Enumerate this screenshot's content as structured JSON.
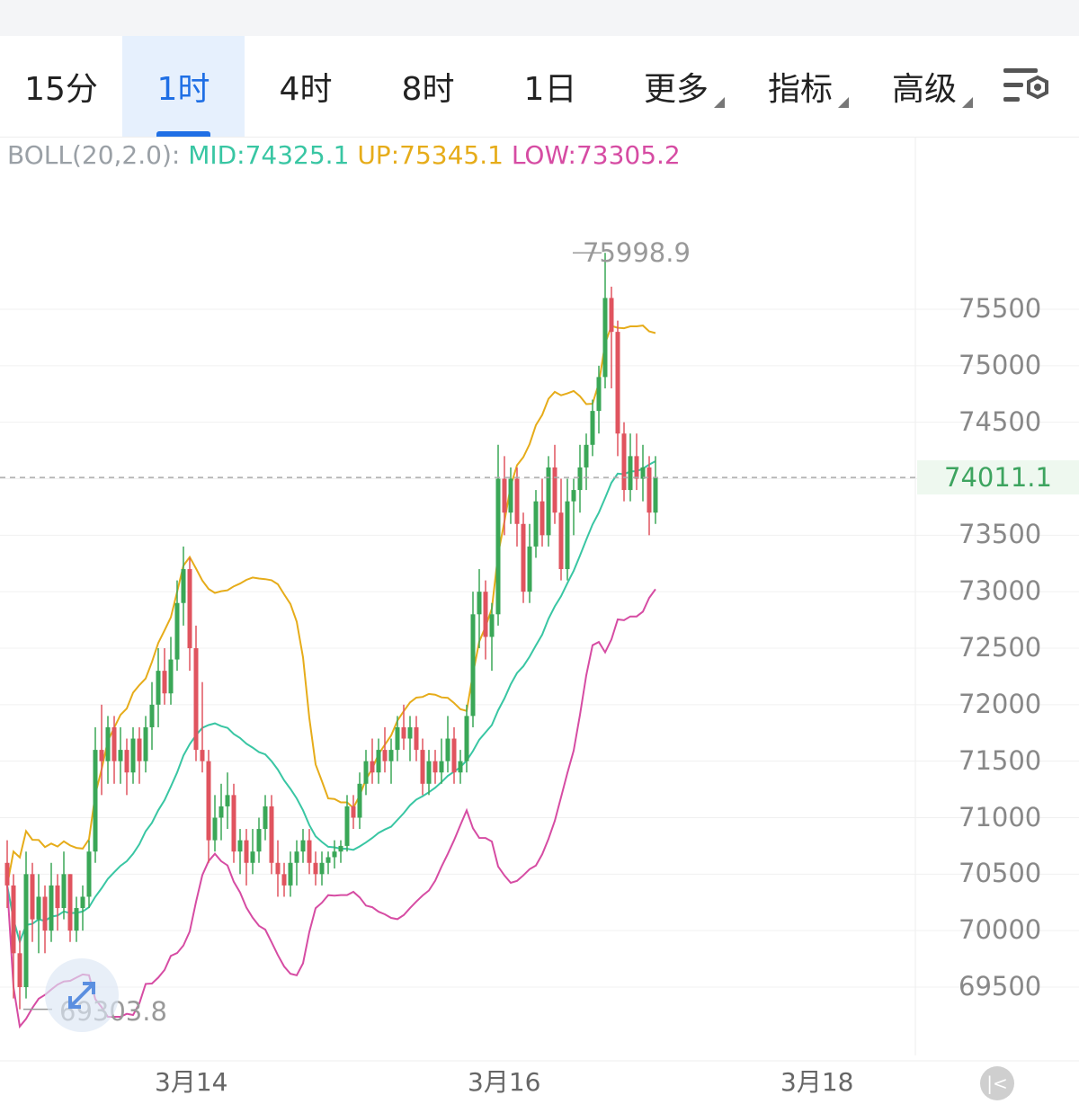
{
  "tabs": [
    {
      "label": "15分",
      "active": false,
      "dropdown": false
    },
    {
      "label": "1时",
      "active": true,
      "dropdown": false
    },
    {
      "label": "4时",
      "active": false,
      "dropdown": false
    },
    {
      "label": "8时",
      "active": false,
      "dropdown": false
    },
    {
      "label": "1日",
      "active": false,
      "dropdown": false
    },
    {
      "label": "更多",
      "active": false,
      "dropdown": true
    },
    {
      "label": "指标",
      "active": false,
      "dropdown": true
    },
    {
      "label": "高级",
      "active": false,
      "dropdown": true
    }
  ],
  "settings_icon": "chart-settings-icon",
  "indicator": {
    "label": "BOLL(20,2.0):",
    "mid": "MID:74325.1",
    "up": "UP:75345.1",
    "low": "LOW:73305.2"
  },
  "price_axis": [
    "75500",
    "75000",
    "74500",
    "74000",
    "73500",
    "73000",
    "72500",
    "72000",
    "71500",
    "71000",
    "70500",
    "70000",
    "69500"
  ],
  "current_price": "74011.1",
  "high_label": "75998.9",
  "low_label": "69303.8",
  "x_axis": [
    "3月14",
    "3月16",
    "3月18"
  ],
  "colors": {
    "up_candle": "#3aa757",
    "down_candle": "#e0545f",
    "boll_mid": "#39c6a3",
    "boll_up": "#e6ac1a",
    "boll_low": "#d64ca3",
    "accent": "#1f6fe5"
  },
  "icons": {
    "expand": "expand-arrows-icon",
    "back": "back-to-latest-icon"
  },
  "chart_data": {
    "type": "candlestick",
    "interval": "1时",
    "y_axis_ticks": [
      69500,
      70000,
      70500,
      71000,
      71500,
      72000,
      72500,
      73000,
      73500,
      74000,
      74500,
      75000,
      75500
    ],
    "x_ticks": [
      "3月14",
      "3月16",
      "3月18"
    ],
    "current_price": 74011.1,
    "visible_high": 75998.9,
    "visible_low": 69303.8,
    "boll_latest": {
      "mid": 74325.1,
      "up": 75345.1,
      "low": 73305.2
    },
    "candles": [
      [
        70600,
        70800,
        70200,
        70400
      ],
      [
        70400,
        70500,
        69400,
        69800
      ],
      [
        69800,
        70000,
        69303.8,
        69500
      ],
      [
        69500,
        70700,
        69400,
        70500
      ],
      [
        70500,
        70600,
        69900,
        70100
      ],
      [
        70100,
        70500,
        69800,
        70300
      ],
      [
        70300,
        70400,
        69800,
        70000
      ],
      [
        70000,
        70600,
        69900,
        70400
      ],
      [
        70400,
        70500,
        70000,
        70200
      ],
      [
        70200,
        70700,
        70100,
        70500
      ],
      [
        70500,
        70500,
        69900,
        70000
      ],
      [
        70000,
        70300,
        69900,
        70200
      ],
      [
        70200,
        70400,
        70000,
        70300
      ],
      [
        70300,
        70800,
        70200,
        70700
      ],
      [
        70700,
        71800,
        70600,
        71600
      ],
      [
        71600,
        72000,
        71200,
        71500
      ],
      [
        71500,
        71900,
        71300,
        71800
      ],
      [
        71800,
        71900,
        71300,
        71500
      ],
      [
        71500,
        71800,
        71300,
        71600
      ],
      [
        71600,
        71700,
        71200,
        71400
      ],
      [
        71400,
        71800,
        71300,
        71700
      ],
      [
        71700,
        71800,
        71300,
        71500
      ],
      [
        71500,
        71900,
        71400,
        71800
      ],
      [
        71800,
        72200,
        71600,
        72000
      ],
      [
        72000,
        72500,
        71800,
        72300
      ],
      [
        72300,
        72500,
        72000,
        72100
      ],
      [
        72100,
        72600,
        72000,
        72400
      ],
      [
        72400,
        73100,
        72300,
        72900
      ],
      [
        72900,
        73400,
        72700,
        73200
      ],
      [
        73200,
        73300,
        72300,
        72500
      ],
      [
        72500,
        72700,
        71500,
        71600
      ],
      [
        71600,
        72200,
        71400,
        71500
      ],
      [
        71500,
        71600,
        70600,
        70800
      ],
      [
        70800,
        71200,
        70700,
        71000
      ],
      [
        71000,
        71300,
        70800,
        71100
      ],
      [
        71100,
        71400,
        70900,
        71200
      ],
      [
        71200,
        71300,
        70600,
        70700
      ],
      [
        70700,
        70900,
        70500,
        70800
      ],
      [
        70800,
        70900,
        70400,
        70600
      ],
      [
        70600,
        70900,
        70500,
        70700
      ],
      [
        70700,
        71000,
        70600,
        70900
      ],
      [
        70900,
        71200,
        70800,
        71100
      ],
      [
        71100,
        71200,
        70500,
        70600
      ],
      [
        70600,
        70800,
        70300,
        70500
      ],
      [
        70500,
        70600,
        70300,
        70400
      ],
      [
        70400,
        70700,
        70300,
        70600
      ],
      [
        70600,
        70800,
        70400,
        70700
      ],
      [
        70700,
        70900,
        70600,
        70800
      ],
      [
        70800,
        70900,
        70500,
        70600
      ],
      [
        70600,
        70700,
        70400,
        70500
      ],
      [
        70500,
        70700,
        70400,
        70600
      ],
      [
        70600,
        70700,
        70500,
        70650
      ],
      [
        70650,
        70800,
        70550,
        70700
      ],
      [
        70700,
        70800,
        70600,
        70750
      ],
      [
        70750,
        71200,
        70700,
        71100
      ],
      [
        71100,
        71200,
        70900,
        71000
      ],
      [
        71000,
        71400,
        70900,
        71300
      ],
      [
        71300,
        71600,
        71200,
        71500
      ],
      [
        71500,
        71700,
        71300,
        71400
      ],
      [
        71400,
        71700,
        71300,
        71600
      ],
      [
        71600,
        71800,
        71400,
        71500
      ],
      [
        71500,
        71700,
        71300,
        71600
      ],
      [
        71600,
        71900,
        71500,
        71800
      ],
      [
        71800,
        72000,
        71600,
        71700
      ],
      [
        71700,
        71900,
        71500,
        71800
      ],
      [
        71800,
        71900,
        71500,
        71600
      ],
      [
        71600,
        71700,
        71200,
        71300
      ],
      [
        71300,
        71600,
        71200,
        71500
      ],
      [
        71500,
        71600,
        71300,
        71400
      ],
      [
        71400,
        71700,
        71300,
        71500
      ],
      [
        71500,
        71900,
        71400,
        71700
      ],
      [
        71700,
        71800,
        71300,
        71400
      ],
      [
        71400,
        71600,
        71300,
        71500
      ],
      [
        71500,
        72000,
        71400,
        71900
      ],
      [
        71900,
        73000,
        71800,
        72800
      ],
      [
        72800,
        73200,
        72500,
        73000
      ],
      [
        73000,
        73100,
        72400,
        72600
      ],
      [
        72600,
        72900,
        72300,
        72800
      ],
      [
        72800,
        74300,
        72700,
        74000
      ],
      [
        74000,
        74200,
        73500,
        73700
      ],
      [
        73700,
        74100,
        73600,
        74000
      ],
      [
        74000,
        74100,
        73400,
        73600
      ],
      [
        73600,
        73700,
        72900,
        73000
      ],
      [
        73000,
        73600,
        72900,
        73400
      ],
      [
        73400,
        73900,
        73300,
        73800
      ],
      [
        73800,
        74000,
        73400,
        73500
      ],
      [
        73500,
        74200,
        73400,
        74100
      ],
      [
        74100,
        74300,
        73600,
        73700
      ],
      [
        73700,
        74000,
        73100,
        73200
      ],
      [
        73200,
        74000,
        73100,
        73800
      ],
      [
        73800,
        74000,
        73500,
        73900
      ],
      [
        73900,
        74300,
        73700,
        74100
      ],
      [
        74100,
        74400,
        73900,
        74300
      ],
      [
        74300,
        74700,
        74200,
        74600
      ],
      [
        74600,
        75000,
        74400,
        74900
      ],
      [
        74900,
        75998.9,
        74800,
        75600
      ],
      [
        75600,
        75700,
        74800,
        75300
      ],
      [
        75300,
        75400,
        74200,
        74400
      ],
      [
        74400,
        74500,
        73800,
        73900
      ],
      [
        73900,
        74400,
        73800,
        74200
      ],
      [
        74200,
        74400,
        73900,
        74000
      ],
      [
        74000,
        74300,
        73800,
        74100
      ],
      [
        74100,
        74200,
        73500,
        73700
      ],
      [
        73700,
        74200,
        73600,
        74011.1
      ]
    ]
  }
}
